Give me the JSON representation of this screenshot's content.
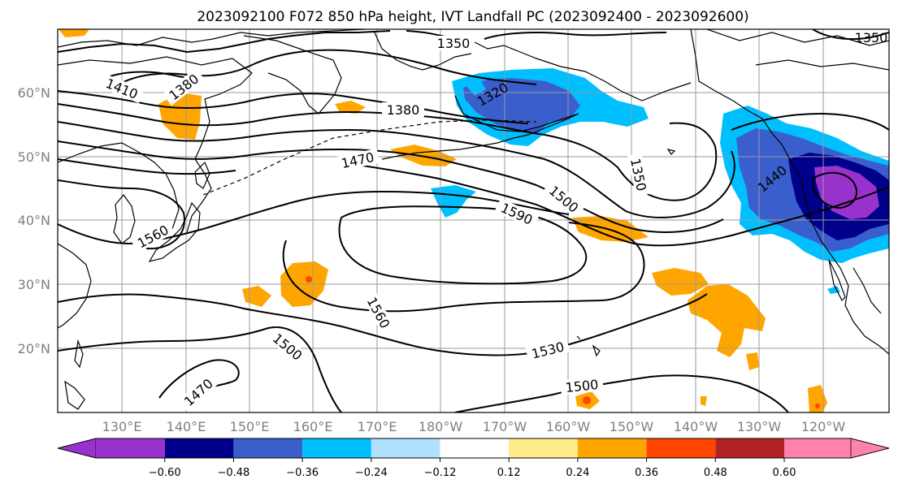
{
  "title": "2023092100 F072 850 hPa height, IVT Landfall PC (2023092400 - 2023092600)",
  "lat_labels": [
    "60°N",
    "50°N",
    "40°N",
    "30°N",
    "20°N"
  ],
  "lon_labels": [
    "130°E",
    "140°E",
    "150°E",
    "160°E",
    "170°E",
    "180°W",
    "170°W",
    "160°W",
    "150°W",
    "140°W",
    "130°W",
    "120°W"
  ],
  "contour_labels": [
    "1350",
    "1410",
    "1380",
    "1320",
    "1380",
    "1470",
    "1350",
    "1500",
    "1590",
    "1440",
    "1560",
    "1560",
    "1500",
    "1530",
    "1470",
    "1500",
    "1350"
  ],
  "colorbar": {
    "ticks": [
      "−0.60",
      "−0.48",
      "−0.36",
      "−0.24",
      "−0.12",
      "0.12",
      "0.24",
      "0.36",
      "0.48",
      "0.60"
    ],
    "colors": [
      "#9932cc",
      "#00008b",
      "#3a5fcd",
      "#00bfff",
      "#b0e2ff",
      "#ffffff",
      "#ffec8b",
      "#ffa500",
      "#ff4500",
      "#b22222",
      "#ff82ab"
    ]
  },
  "shading_colors": {
    "orange": "#ffa500",
    "red": "#ff4500",
    "light_blue": "#b0e2ff",
    "cyan": "#00bfff",
    "blue": "#3a5fcd",
    "navy": "#00008b",
    "purple": "#9932cc"
  }
}
